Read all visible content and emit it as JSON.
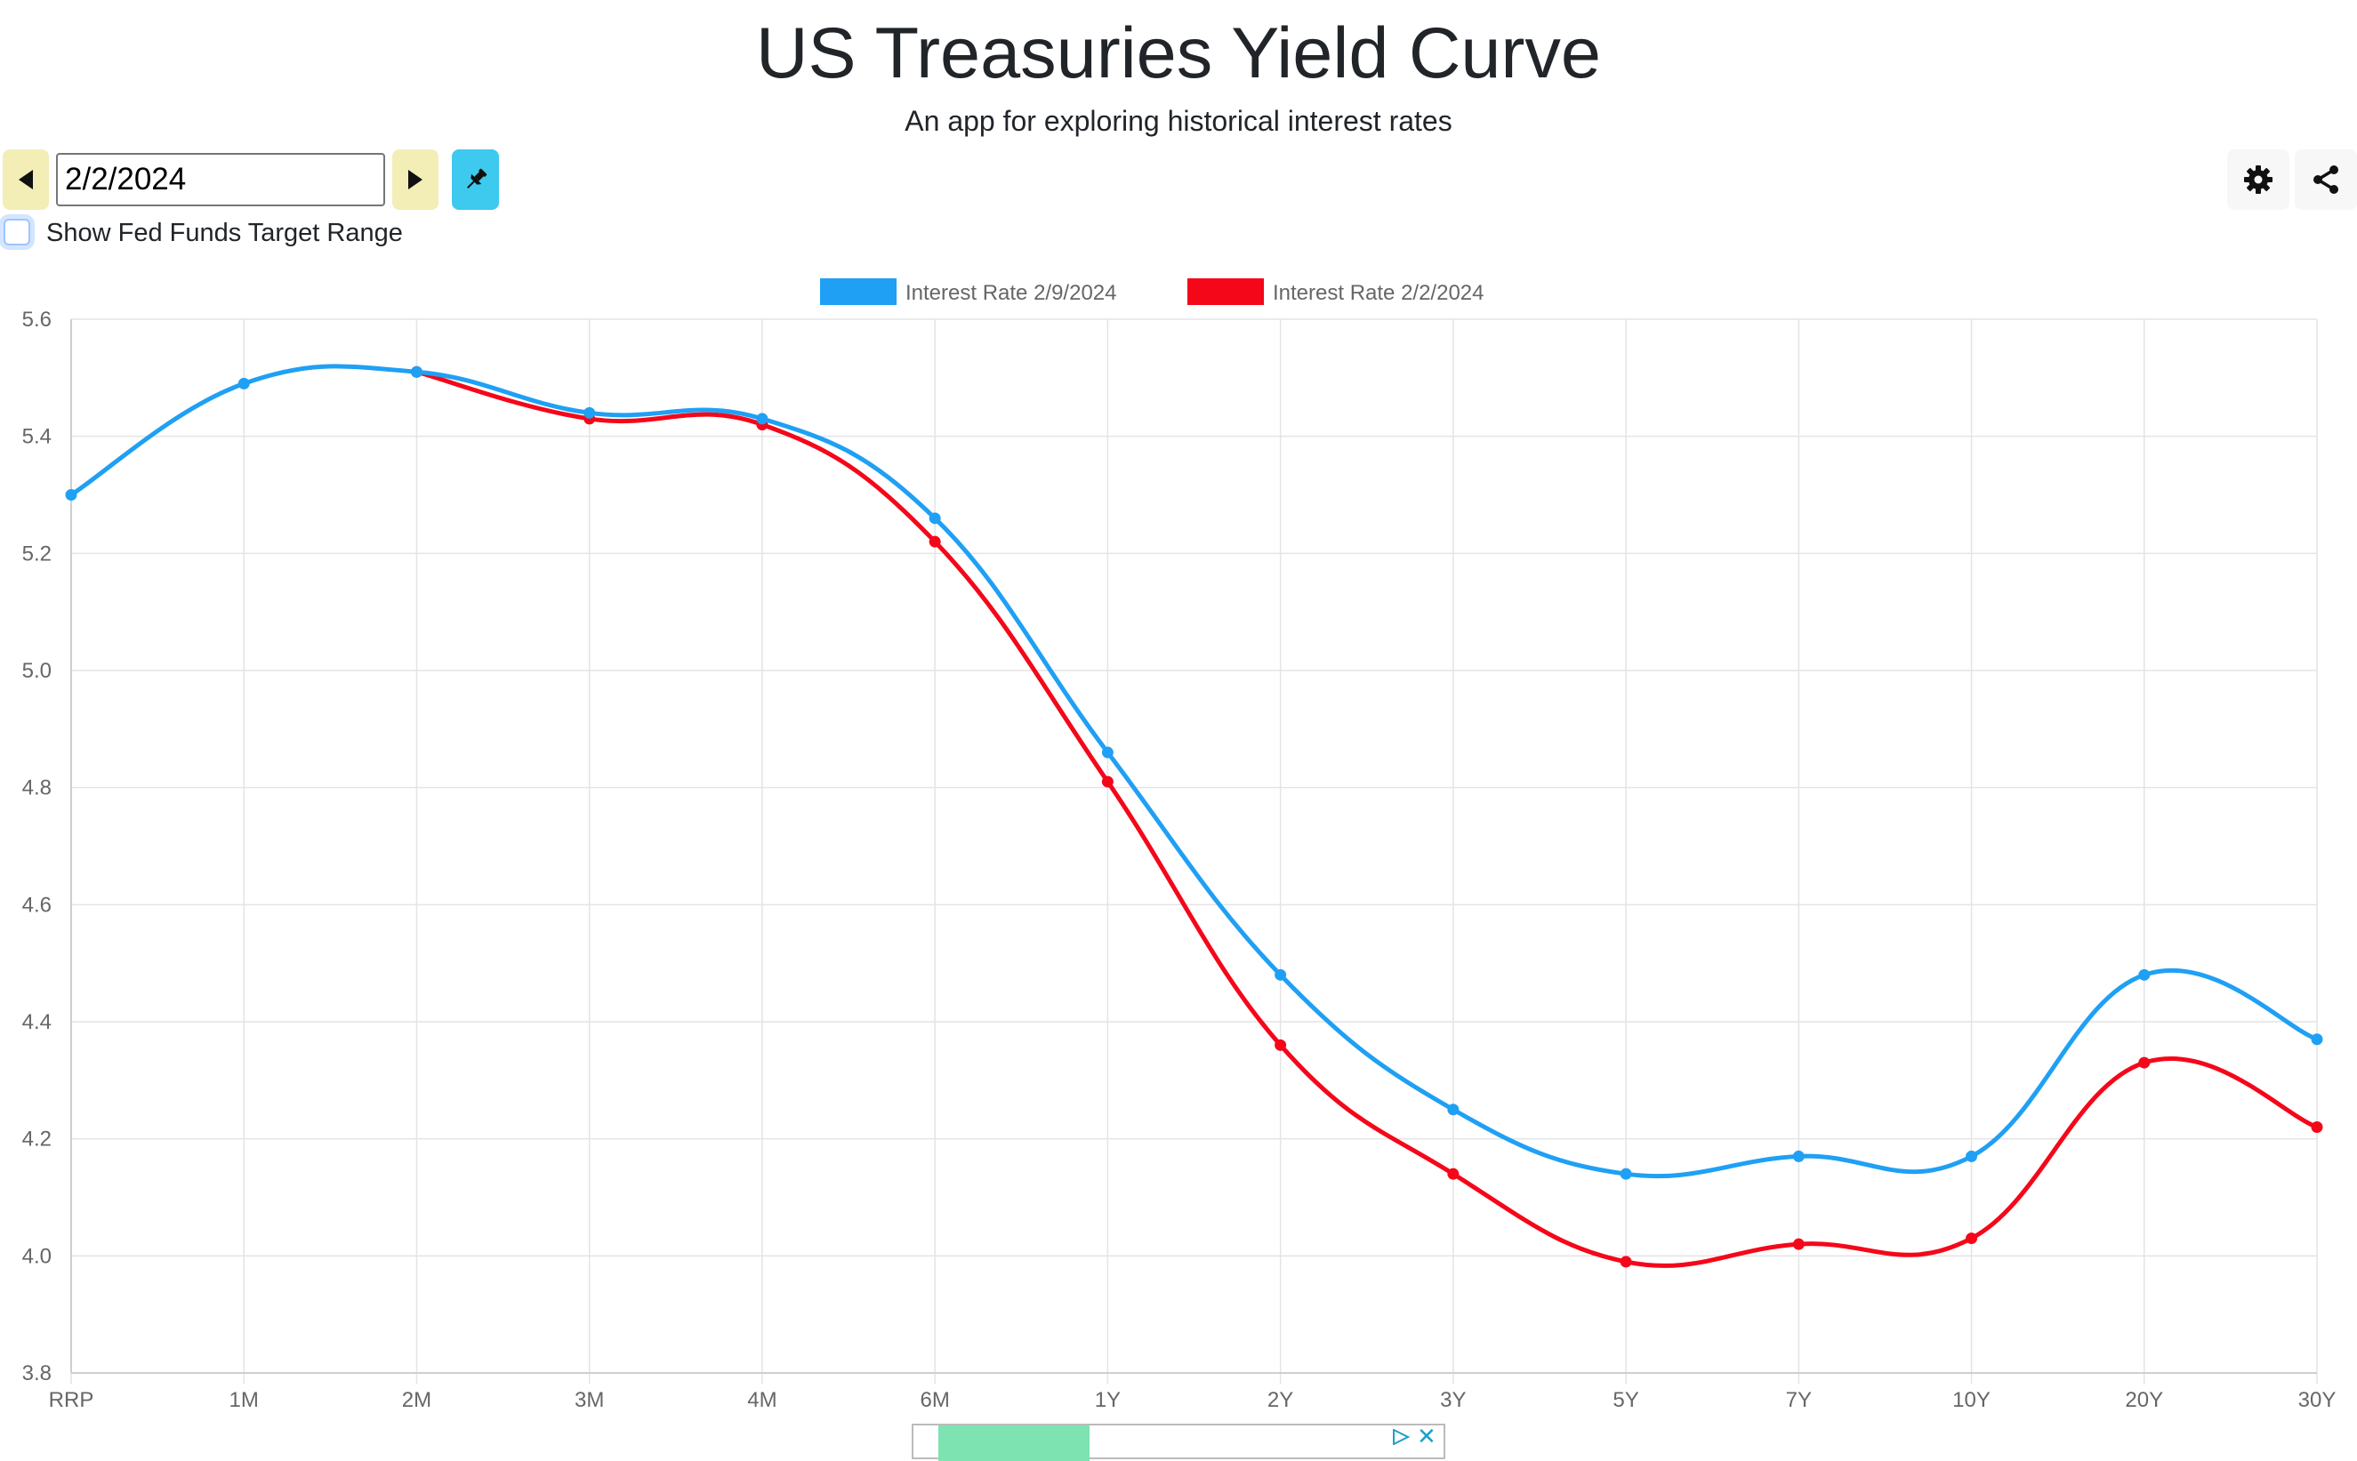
{
  "header": {
    "title": "US Treasuries Yield Curve",
    "subtitle": "An app for exploring historical interest rates"
  },
  "controls": {
    "date_value": "2/2/2024",
    "fed_funds_label": "Show Fed Funds Target Range",
    "fed_funds_checked": false,
    "icons": {
      "prev": "triangle-left-icon",
      "next": "triangle-right-icon",
      "pin": "pin-icon",
      "settings": "gear-icon",
      "share": "share-icon"
    },
    "colors": {
      "nav_button": "#f3eeb5",
      "pin_button": "#3ec9ee"
    }
  },
  "chart_data": {
    "type": "line",
    "categories": [
      "RRP",
      "1M",
      "2M",
      "3M",
      "4M",
      "6M",
      "1Y",
      "2Y",
      "3Y",
      "5Y",
      "7Y",
      "10Y",
      "20Y",
      "30Y"
    ],
    "ylim": [
      3.8,
      5.6
    ],
    "yticks": [
      "3.8",
      "4.0",
      "4.2",
      "4.4",
      "4.6",
      "4.8",
      "5.0",
      "5.2",
      "5.4",
      "5.6"
    ],
    "grid": true,
    "legend": "top-center",
    "series": [
      {
        "name": "Interest Rate 2/9/2024",
        "color": "#1fa0f4",
        "values": [
          5.3,
          5.49,
          5.51,
          5.44,
          5.43,
          5.26,
          4.86,
          4.48,
          4.25,
          4.14,
          4.17,
          4.17,
          4.48,
          4.37
        ]
      },
      {
        "name": "Interest Rate 2/2/2024",
        "color": "#f5071a",
        "values": [
          null,
          null,
          5.51,
          5.43,
          5.42,
          5.22,
          4.81,
          4.36,
          4.14,
          3.99,
          4.02,
          4.03,
          4.33,
          4.22
        ]
      }
    ]
  }
}
